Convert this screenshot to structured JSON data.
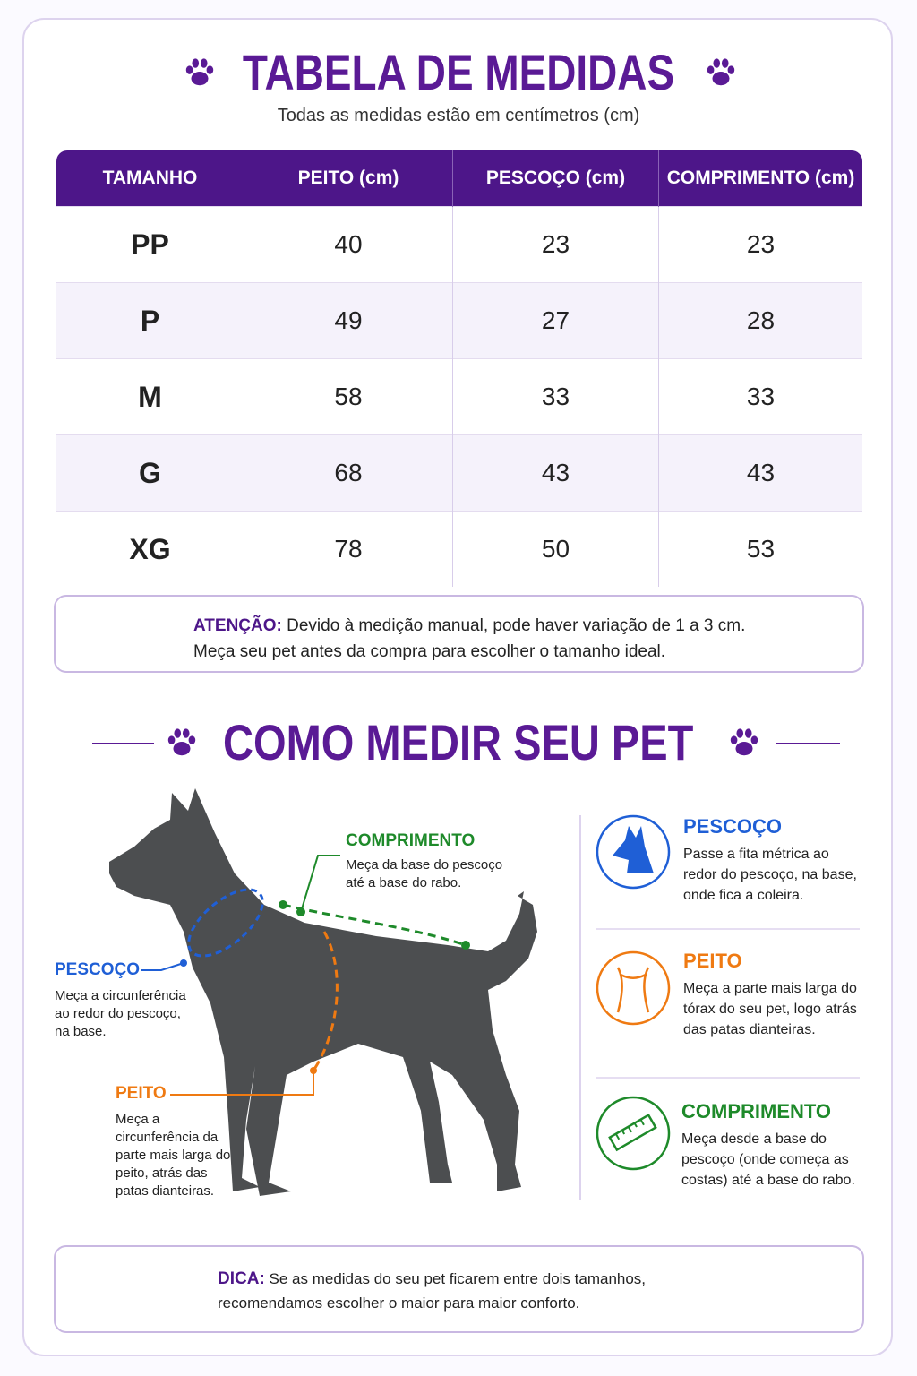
{
  "header": {
    "title": "TABELA DE MEDIDAS",
    "subtitle": "Todas as medidas estão em centímetros (cm)"
  },
  "table": {
    "columns": [
      "TAMANHO",
      "PEITO (cm)",
      "PESCOÇO (cm)",
      "COMPRIMENTO (cm)"
    ],
    "rows": [
      [
        "PP",
        40,
        23,
        23
      ],
      [
        "P",
        49,
        27,
        28
      ],
      [
        "M",
        58,
        33,
        33
      ],
      [
        "G",
        68,
        43,
        43
      ],
      [
        "XG",
        78,
        50,
        53
      ]
    ]
  },
  "warning": {
    "label": "ATENÇÃO:",
    "lines": [
      "Devido à medição manual, pode haver variação de 1 a 3 cm.",
      "Meça seu pet antes da compra para escolher o tamanho ideal."
    ]
  },
  "how_to": {
    "title": "COMO MEDIR SEU PET",
    "callouts": [
      {
        "label": "COMPRIMENTO",
        "text": "Meça da base do pescoço até a base do rabo."
      },
      {
        "label": "PESCOÇO",
        "text": "Meça a circunferência ao redor do pescoço, na base."
      },
      {
        "label": "PEITO",
        "text": "Meça a circunferência da parte mais larga do peito, atrás das patas dianteiras."
      }
    ],
    "cards": [
      {
        "label": "PESCOÇO",
        "text": "Passe a fita métrica ao redor do pescoço, na base, onde fica a coleira."
      },
      {
        "label": "PEITO",
        "text": "Meça a parte mais larga do tórax do seu pet, logo atrás das patas dianteiras."
      },
      {
        "label": "COMPRIMENTO",
        "text": "Meça desde a base do pescoço (onde começa as costas) até a base do rabo."
      }
    ]
  },
  "tip": {
    "label": "DICA:",
    "lines": [
      "Se as medidas do seu pet ficarem entre dois tamanhos,",
      "recomendamos escolher o maior para maior conforto."
    ]
  }
}
